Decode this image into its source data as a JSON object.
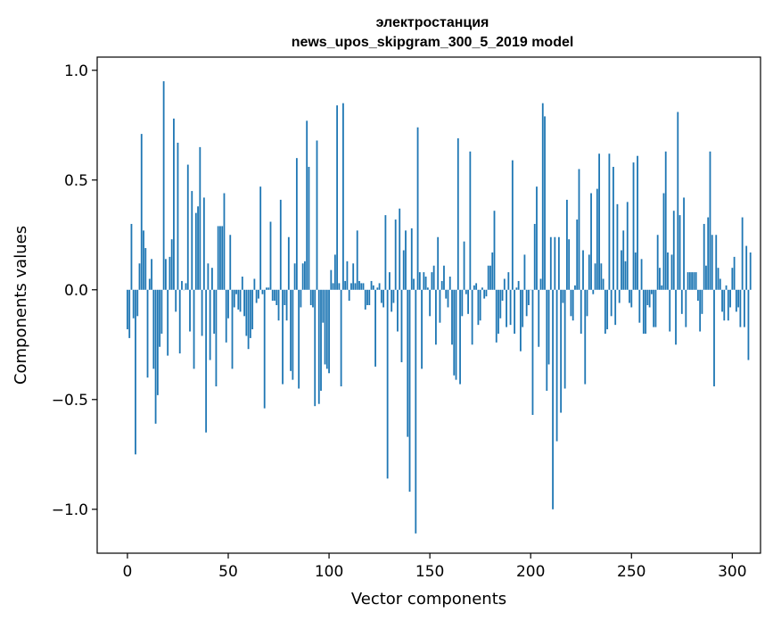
{
  "chart_data": {
    "type": "bar",
    "title_line1": "электростанция",
    "title_line2": "news_upos_skipgram_300_5_2019 model",
    "xlabel": "Vector components",
    "ylabel": "Components values",
    "xlim": [
      -15,
      314
    ],
    "ylim": [
      -1.2,
      1.06
    ],
    "xticks": [
      0,
      50,
      100,
      150,
      200,
      250,
      300
    ],
    "xtick_labels": [
      "0",
      "50",
      "100",
      "150",
      "200",
      "250",
      "300"
    ],
    "yticks": [
      1.0,
      0.5,
      0.0,
      -0.5,
      -1.0
    ],
    "ytick_labels": [
      "1.0",
      "0.5",
      "0.0",
      "−0.5",
      "−1.0"
    ],
    "bar_color": "#1f77b4",
    "bar_width": 0.8,
    "series": [
      {
        "name": "электростанция",
        "values": [
          -0.18,
          -0.22,
          0.3,
          -0.13,
          -0.75,
          -0.12,
          0.12,
          0.71,
          0.27,
          0.19,
          -0.4,
          0.05,
          0.14,
          -0.36,
          -0.61,
          -0.48,
          -0.26,
          -0.2,
          0.95,
          0.14,
          -0.3,
          0.15,
          0.23,
          0.78,
          -0.1,
          0.67,
          -0.29,
          0.04,
          0.0,
          0.03,
          0.57,
          -0.19,
          0.45,
          -0.36,
          0.35,
          0.38,
          0.65,
          -0.21,
          0.42,
          -0.65,
          0.12,
          -0.32,
          0.1,
          -0.2,
          -0.44,
          0.29,
          0.29,
          0.29,
          0.44,
          -0.24,
          -0.13,
          0.25,
          -0.36,
          -0.08,
          -0.02,
          -0.09,
          -0.1,
          0.06,
          -0.12,
          -0.21,
          -0.27,
          -0.22,
          -0.18,
          0.05,
          -0.06,
          -0.04,
          0.47,
          -0.02,
          -0.54,
          0.01,
          0.01,
          0.31,
          -0.05,
          -0.05,
          -0.07,
          -0.14,
          0.41,
          -0.43,
          -0.07,
          -0.14,
          0.24,
          -0.37,
          -0.41,
          0.12,
          0.6,
          -0.45,
          -0.08,
          0.12,
          0.13,
          0.77,
          0.56,
          -0.07,
          -0.08,
          -0.53,
          0.68,
          -0.52,
          -0.46,
          -0.15,
          -0.34,
          -0.36,
          -0.38,
          0.09,
          0.03,
          0.16,
          0.84,
          0.03,
          -0.44,
          0.85,
          0.04,
          0.13,
          -0.05,
          0.03,
          0.12,
          0.03,
          0.27,
          0.04,
          0.03,
          0.03,
          -0.09,
          -0.07,
          -0.07,
          0.04,
          0.02,
          -0.35,
          0.01,
          0.03,
          -0.06,
          -0.08,
          0.34,
          -0.86,
          0.08,
          -0.1,
          -0.06,
          0.32,
          -0.19,
          0.37,
          -0.33,
          0.18,
          0.27,
          -0.67,
          -0.92,
          0.28,
          0.05,
          -1.11,
          0.74,
          0.08,
          -0.36,
          0.08,
          0.06,
          0.01,
          -0.12,
          0.08,
          0.11,
          -0.25,
          0.24,
          -0.15,
          0.04,
          0.11,
          -0.04,
          -0.08,
          0.06,
          -0.25,
          -0.39,
          -0.41,
          0.69,
          -0.43,
          -0.12,
          0.22,
          -0.02,
          -0.11,
          0.63,
          -0.25,
          0.02,
          0.03,
          -0.16,
          -0.14,
          0.01,
          -0.04,
          -0.03,
          0.11,
          0.11,
          0.17,
          0.36,
          -0.24,
          -0.2,
          -0.13,
          -0.05,
          0.05,
          -0.17,
          0.08,
          -0.16,
          0.59,
          -0.2,
          0.01,
          0.04,
          -0.28,
          -0.17,
          0.16,
          -0.12,
          -0.07,
          0.0,
          -0.57,
          0.3,
          0.47,
          -0.26,
          0.05,
          0.85,
          0.79,
          -0.46,
          -0.34,
          0.24,
          -1.0,
          0.24,
          -0.69,
          0.24,
          -0.56,
          -0.06,
          -0.45,
          0.41,
          0.23,
          -0.12,
          -0.14,
          0.02,
          0.32,
          0.55,
          -0.2,
          0.18,
          -0.43,
          -0.12,
          0.16,
          0.44,
          -0.02,
          0.12,
          0.46,
          0.62,
          0.12,
          0.05,
          -0.2,
          -0.18,
          0.62,
          -0.12,
          0.56,
          -0.16,
          0.39,
          -0.06,
          0.18,
          0.27,
          0.13,
          0.4,
          -0.06,
          -0.08,
          0.58,
          0.17,
          0.61,
          -0.15,
          0.14,
          -0.2,
          -0.2,
          -0.07,
          -0.08,
          -0.02,
          -0.17,
          -0.17,
          0.25,
          0.1,
          0.02,
          0.44,
          0.63,
          0.17,
          -0.19,
          0.16,
          0.36,
          -0.25,
          0.81,
          0.34,
          -0.11,
          0.42,
          -0.17,
          0.08,
          0.08,
          0.08,
          0.08,
          0.08,
          -0.05,
          -0.19,
          -0.11,
          0.3,
          0.11,
          0.33,
          0.63,
          0.25,
          -0.44,
          0.25,
          0.1,
          0.05,
          -0.1,
          -0.14,
          0.02,
          -0.14,
          -0.08,
          0.1,
          0.15,
          -0.1,
          -0.08,
          -0.17,
          0.33,
          -0.17,
          0.2,
          -0.32,
          0.17
        ]
      }
    ]
  }
}
